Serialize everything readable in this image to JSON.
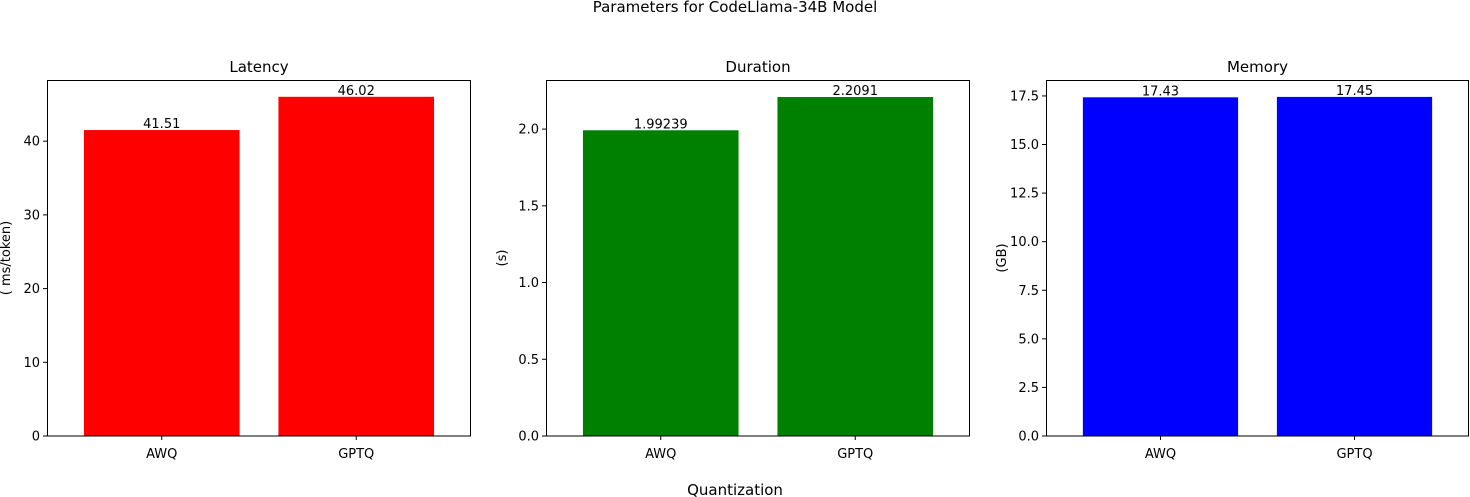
{
  "chart_data": {
    "suptitle": "Parameters for CodeLlama-34B Model",
    "supxlabel": "Quantization",
    "panels": [
      {
        "type": "bar",
        "title": "Latency",
        "ylabel": "( ms/token)",
        "categories": [
          "AWQ",
          "GPTQ"
        ],
        "values": [
          41.51,
          46.02
        ],
        "value_labels": [
          "41.51",
          "46.02"
        ],
        "color": "#ff0000",
        "ylim": [
          0,
          48.3
        ],
        "yticks": [
          0,
          10,
          20,
          30,
          40
        ],
        "ytick_labels": [
          "0",
          "10",
          "20",
          "30",
          "40"
        ]
      },
      {
        "type": "bar",
        "title": "Duration",
        "ylabel": "(s)",
        "categories": [
          "AWQ",
          "GPTQ"
        ],
        "values": [
          1.99239,
          2.2091
        ],
        "value_labels": [
          "1.99239",
          "2.2091"
        ],
        "color": "#008000",
        "ylim": [
          0,
          2.32
        ],
        "yticks": [
          0.0,
          0.5,
          1.0,
          1.5,
          2.0
        ],
        "ytick_labels": [
          "0.0",
          "0.5",
          "1.0",
          "1.5",
          "2.0"
        ]
      },
      {
        "type": "bar",
        "title": "Memory",
        "ylabel": "(GB)",
        "categories": [
          "AWQ",
          "GPTQ"
        ],
        "values": [
          17.43,
          17.45
        ],
        "value_labels": [
          "17.43",
          "17.45"
        ],
        "color": "#0000ff",
        "ylim": [
          0,
          18.32
        ],
        "yticks": [
          0.0,
          2.5,
          5.0,
          7.5,
          10.0,
          12.5,
          15.0,
          17.5
        ],
        "ytick_labels": [
          "0.0",
          "2.5",
          "5.0",
          "7.5",
          "10.0",
          "12.5",
          "15.0",
          "17.5"
        ]
      }
    ]
  }
}
